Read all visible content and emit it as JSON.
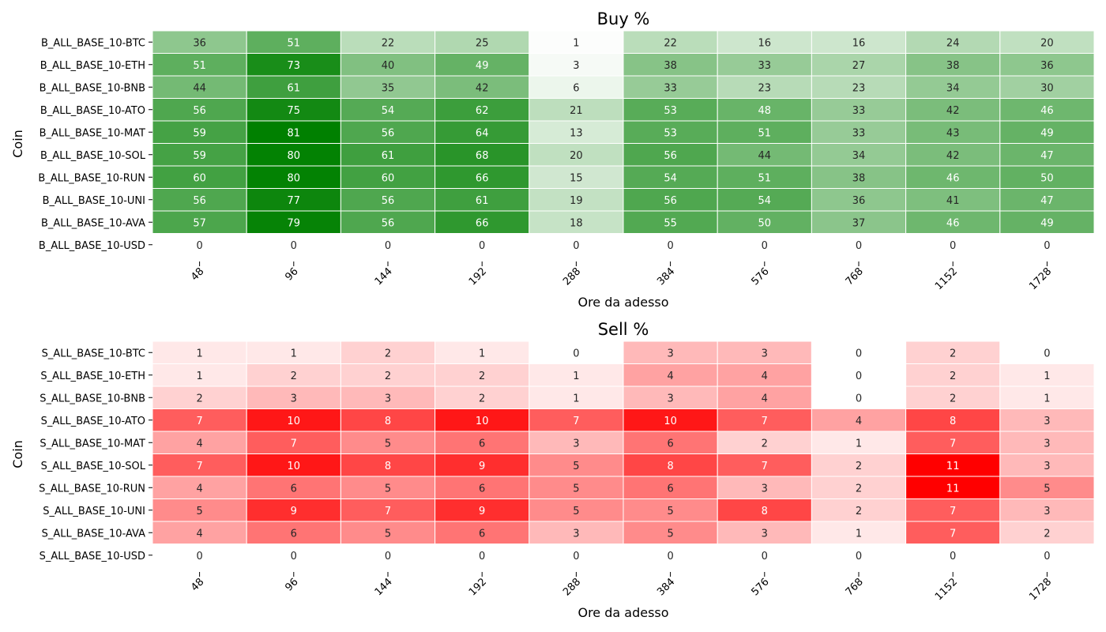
{
  "chart_data": [
    {
      "type": "heatmap",
      "title": "Buy %",
      "xlabel": "Ore da adesso",
      "ylabel": "Coin",
      "colormap": "white-to-green",
      "color_max": "#008000",
      "categories": [
        "48",
        "96",
        "144",
        "192",
        "288",
        "384",
        "576",
        "768",
        "1152",
        "1728"
      ],
      "rows": [
        "B_ALL_BASE_10-BTC",
        "B_ALL_BASE_10-ETH",
        "B_ALL_BASE_10-BNB",
        "B_ALL_BASE_10-ATO",
        "B_ALL_BASE_10-MAT",
        "B_ALL_BASE_10-SOL",
        "B_ALL_BASE_10-RUN",
        "B_ALL_BASE_10-UNI",
        "B_ALL_BASE_10-AVA",
        "B_ALL_BASE_10-USD"
      ],
      "values": [
        [
          36,
          51,
          22,
          25,
          1,
          22,
          16,
          16,
          24,
          20
        ],
        [
          51,
          73,
          40,
          49,
          3,
          38,
          33,
          27,
          38,
          36
        ],
        [
          44,
          61,
          35,
          42,
          6,
          33,
          23,
          23,
          34,
          30
        ],
        [
          56,
          75,
          54,
          62,
          21,
          53,
          48,
          33,
          42,
          46
        ],
        [
          59,
          81,
          56,
          64,
          13,
          53,
          51,
          33,
          43,
          49
        ],
        [
          59,
          80,
          61,
          68,
          20,
          56,
          44,
          34,
          42,
          47
        ],
        [
          60,
          80,
          60,
          66,
          15,
          54,
          51,
          38,
          46,
          50
        ],
        [
          56,
          77,
          56,
          61,
          19,
          56,
          54,
          36,
          41,
          47
        ],
        [
          57,
          79,
          56,
          66,
          18,
          55,
          50,
          37,
          46,
          49
        ],
        [
          0,
          0,
          0,
          0,
          0,
          0,
          0,
          0,
          0,
          0
        ]
      ]
    },
    {
      "type": "heatmap",
      "title": "Sell %",
      "xlabel": "Ore da adesso",
      "ylabel": "Coin",
      "colormap": "white-to-red",
      "color_max": "#ff0000",
      "categories": [
        "48",
        "96",
        "144",
        "192",
        "288",
        "384",
        "576",
        "768",
        "1152",
        "1728"
      ],
      "rows": [
        "S_ALL_BASE_10-BTC",
        "S_ALL_BASE_10-ETH",
        "S_ALL_BASE_10-BNB",
        "S_ALL_BASE_10-ATO",
        "S_ALL_BASE_10-MAT",
        "S_ALL_BASE_10-SOL",
        "S_ALL_BASE_10-RUN",
        "S_ALL_BASE_10-UNI",
        "S_ALL_BASE_10-AVA",
        "S_ALL_BASE_10-USD"
      ],
      "values": [
        [
          1,
          1,
          2,
          1,
          0,
          3,
          3,
          0,
          2,
          0
        ],
        [
          1,
          2,
          2,
          2,
          1,
          4,
          4,
          0,
          2,
          1
        ],
        [
          2,
          3,
          3,
          2,
          1,
          3,
          4,
          0,
          2,
          1
        ],
        [
          7,
          10,
          8,
          10,
          7,
          10,
          7,
          4,
          8,
          3
        ],
        [
          4,
          7,
          5,
          6,
          3,
          6,
          2,
          1,
          7,
          3
        ],
        [
          7,
          10,
          8,
          9,
          5,
          8,
          7,
          2,
          11,
          3
        ],
        [
          4,
          6,
          5,
          6,
          5,
          6,
          3,
          2,
          11,
          5
        ],
        [
          5,
          9,
          7,
          9,
          5,
          5,
          8,
          2,
          7,
          3
        ],
        [
          4,
          6,
          5,
          6,
          3,
          5,
          3,
          1,
          7,
          2
        ],
        [
          0,
          0,
          0,
          0,
          0,
          0,
          0,
          0,
          0,
          0
        ]
      ]
    }
  ]
}
